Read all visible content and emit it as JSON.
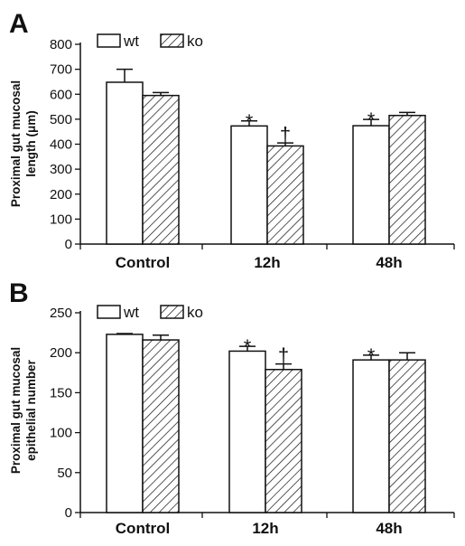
{
  "chart_data": [
    {
      "type": "bar",
      "panel_label": "A",
      "ylabel_lines": [
        "Proximal gut mucosal",
        "length (μm)"
      ],
      "categories": [
        "Control",
        "12h",
        "48h"
      ],
      "ylim": [
        0,
        800
      ],
      "yticks": [
        0,
        100,
        200,
        300,
        400,
        500,
        600,
        700,
        800
      ],
      "legend": {
        "placement": "top-left"
      },
      "series": [
        {
          "name": "wt",
          "fill": "white",
          "values": [
            648,
            473,
            474
          ],
          "errors": [
            52,
            20,
            25
          ],
          "markers": [
            "",
            "*",
            "*"
          ]
        },
        {
          "name": "ko",
          "fill": "hatched",
          "values": [
            595,
            393,
            515
          ],
          "errors": [
            12,
            12,
            12
          ],
          "markers": [
            "",
            "†",
            ""
          ]
        }
      ]
    },
    {
      "type": "bar",
      "panel_label": "B",
      "ylabel_lines": [
        "Proximal gut mucosal",
        "epithelial number"
      ],
      "categories": [
        "Control",
        "12h",
        "48h"
      ],
      "ylim": [
        0,
        250
      ],
      "yticks": [
        0,
        50,
        100,
        150,
        200,
        250
      ],
      "legend": {
        "placement": "top-left"
      },
      "series": [
        {
          "name": "wt",
          "fill": "white",
          "values": [
            223,
            202,
            191
          ],
          "errors": [
            1,
            6,
            6
          ],
          "markers": [
            "",
            "*",
            "*"
          ]
        },
        {
          "name": "ko",
          "fill": "hatched",
          "values": [
            216,
            179,
            191
          ],
          "errors": [
            6,
            7,
            9
          ],
          "markers": [
            "",
            "†",
            ""
          ]
        }
      ]
    }
  ]
}
